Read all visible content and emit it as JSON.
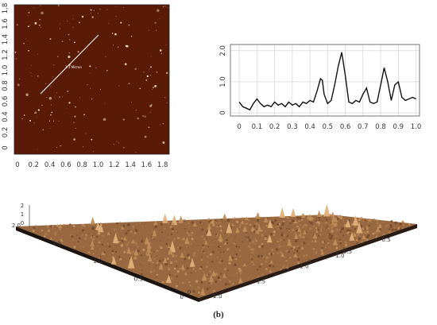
{
  "afm_image": {
    "x_ticks": [
      "0",
      "0.2",
      "0.4",
      "0.6",
      "0.8",
      "1.0",
      "1.2",
      "1.4",
      "1.6",
      "1.8"
    ],
    "y_ticks": [
      "0",
      "0.2",
      "0.4",
      "0.6",
      "0.8",
      "1.0",
      "1.2",
      "1.4",
      "1.6",
      "1.8"
    ],
    "line_label": "1.1 Micron",
    "colors": {
      "background": "#5a1a08",
      "speck": "#f7e6c3",
      "line": "#ffffff"
    }
  },
  "chart_data": {
    "type": "line",
    "x_ticks": [
      "0",
      "0.1",
      "0.2",
      "0.3",
      "0.4",
      "0.5",
      "0.6",
      "0.7",
      "0.8",
      "0.9",
      "1.0"
    ],
    "y_ticks": [
      "0",
      "1.0",
      "2.0"
    ],
    "xlim": [
      -0.05,
      1.02
    ],
    "ylim": [
      -0.1,
      2.2
    ],
    "grid": true,
    "series": [
      {
        "color": "#111111",
        "x": [
          0.0,
          0.02,
          0.04,
          0.06,
          0.08,
          0.1,
          0.12,
          0.14,
          0.16,
          0.18,
          0.2,
          0.22,
          0.24,
          0.26,
          0.28,
          0.3,
          0.32,
          0.34,
          0.36,
          0.38,
          0.4,
          0.42,
          0.44,
          0.46,
          0.47,
          0.48,
          0.5,
          0.52,
          0.54,
          0.56,
          0.58,
          0.6,
          0.62,
          0.64,
          0.66,
          0.68,
          0.7,
          0.72,
          0.74,
          0.76,
          0.78,
          0.8,
          0.82,
          0.84,
          0.86,
          0.88,
          0.9,
          0.92,
          0.94,
          0.96,
          0.98,
          1.0
        ],
        "y": [
          0.35,
          0.2,
          0.15,
          0.1,
          0.3,
          0.45,
          0.3,
          0.2,
          0.25,
          0.2,
          0.35,
          0.25,
          0.3,
          0.2,
          0.35,
          0.25,
          0.3,
          0.2,
          0.35,
          0.3,
          0.4,
          0.35,
          0.7,
          1.1,
          1.05,
          0.6,
          0.3,
          0.4,
          0.9,
          1.5,
          1.95,
          1.2,
          0.35,
          0.3,
          0.4,
          0.35,
          0.6,
          0.8,
          0.35,
          0.3,
          0.35,
          0.9,
          1.45,
          1.0,
          0.4,
          0.9,
          1.0,
          0.5,
          0.4,
          0.45,
          0.5,
          0.45
        ]
      }
    ]
  },
  "surface_plot": {
    "z_ticks": [
      "2",
      "1",
      "0"
    ],
    "left_axis_ticks": [
      "2.0",
      "1.5",
      "1.0",
      "0.5",
      "0"
    ],
    "right_axis_ticks": [
      "0.5",
      "1.0",
      "1.5",
      "2.0"
    ],
    "inner_right_ticks": [
      "1.0",
      "0.5"
    ],
    "corner_label": "0",
    "colors": {
      "surface": "#9a6840",
      "peak": "#e2b07a",
      "base": "#1c1410"
    }
  },
  "caption": "(b)"
}
